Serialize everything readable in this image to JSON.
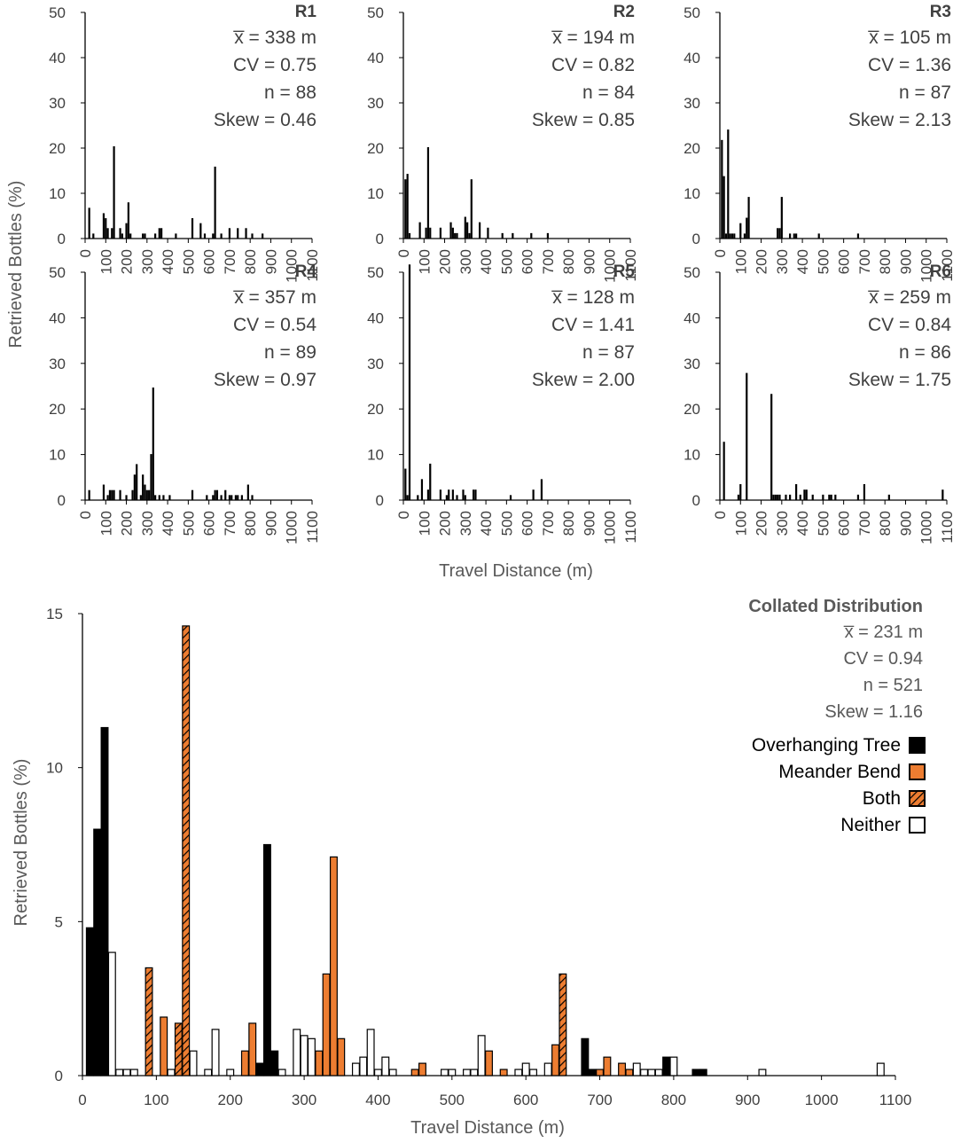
{
  "chart_data": [
    {
      "panel": "R1",
      "type": "bar",
      "stats": {
        "mean": "x̅ = 338 m",
        "cv": "CV = 0.75",
        "n": "n = 88",
        "skew": "Skew = 0.46"
      },
      "ylim": [
        0,
        50
      ],
      "yticks": [
        "0",
        "10",
        "20",
        "30",
        "40",
        "50"
      ],
      "xlim": [
        0,
        1100
      ],
      "x": [
        20,
        40,
        90,
        100,
        110,
        130,
        140,
        170,
        180,
        200,
        210,
        220,
        280,
        290,
        340,
        360,
        370,
        440,
        520,
        560,
        580,
        620,
        630,
        660,
        700,
        740,
        780,
        810,
        860
      ],
      "values": [
        6.8,
        1.1,
        5.6,
        4.5,
        2.3,
        2.3,
        20.4,
        2.3,
        1.1,
        3.4,
        8.0,
        1.1,
        1.1,
        1.1,
        1.1,
        2.3,
        2.3,
        1.1,
        4.5,
        3.4,
        1.1,
        1.1,
        15.9,
        1.1,
        2.3,
        2.3,
        2.3,
        1.1,
        1.1
      ]
    },
    {
      "panel": "R2",
      "type": "bar",
      "stats": {
        "mean": "x̅ = 194 m",
        "cv": "CV = 0.82",
        "n": "n = 84",
        "skew": "Skew = 0.85"
      },
      "ylim": [
        0,
        50
      ],
      "yticks": [
        "0",
        "10",
        "20",
        "30",
        "40",
        "50"
      ],
      "xlim": [
        0,
        1100
      ],
      "x": [
        10,
        20,
        30,
        80,
        110,
        120,
        130,
        180,
        230,
        240,
        250,
        260,
        300,
        310,
        320,
        330,
        370,
        410,
        480,
        530,
        620,
        700
      ],
      "values": [
        13.1,
        14.3,
        1.2,
        3.6,
        2.4,
        20.2,
        2.4,
        2.4,
        3.6,
        2.4,
        1.2,
        1.2,
        4.8,
        3.6,
        1.2,
        13.1,
        3.6,
        2.4,
        1.2,
        1.2,
        1.2,
        1.2
      ]
    },
    {
      "panel": "R3",
      "type": "bar",
      "stats": {
        "mean": "x̅ = 105 m",
        "cv": "CV = 1.36",
        "n": "n = 87",
        "skew": "Skew = 2.13"
      },
      "ylim": [
        0,
        50
      ],
      "yticks": [
        "0",
        "10",
        "20",
        "30",
        "40",
        "50"
      ],
      "xlim": [
        0,
        1100
      ],
      "x": [
        10,
        20,
        30,
        40,
        50,
        60,
        70,
        100,
        120,
        130,
        140,
        280,
        290,
        300,
        340,
        360,
        370,
        480,
        670
      ],
      "values": [
        21.8,
        13.8,
        1.1,
        24.1,
        1.1,
        1.1,
        1.1,
        3.4,
        1.1,
        4.6,
        9.2,
        2.3,
        2.3,
        9.2,
        1.1,
        1.1,
        1.1,
        1.1,
        1.1
      ]
    },
    {
      "panel": "R4",
      "type": "bar",
      "stats": {
        "mean": "x̅ = 357 m",
        "cv": "CV = 0.54",
        "n": "n = 89",
        "skew": "Skew = 0.97"
      },
      "ylim": [
        0,
        50
      ],
      "yticks": [
        "0",
        "10",
        "20",
        "30",
        "40",
        "50"
      ],
      "xlim": [
        0,
        1100
      ],
      "x": [
        20,
        90,
        110,
        120,
        130,
        140,
        170,
        200,
        230,
        240,
        250,
        270,
        280,
        290,
        300,
        310,
        320,
        330,
        340,
        360,
        380,
        410,
        520,
        590,
        620,
        630,
        640,
        660,
        680,
        700,
        710,
        730,
        740,
        760,
        790,
        810
      ],
      "values": [
        2.2,
        3.4,
        1.1,
        2.2,
        2.2,
        2.2,
        2.2,
        1.1,
        2.2,
        5.6,
        7.9,
        1.1,
        5.6,
        3.4,
        2.2,
        2.2,
        10.1,
        24.7,
        1.1,
        1.1,
        1.1,
        1.1,
        2.2,
        1.1,
        1.1,
        2.2,
        2.2,
        1.1,
        2.2,
        1.1,
        1.1,
        1.1,
        1.1,
        1.1,
        3.4,
        1.1
      ]
    },
    {
      "panel": "R5",
      "type": "bar",
      "stats": {
        "mean": "x̅ = 128 m",
        "cv": "CV = 1.41",
        "n": "n = 87",
        "skew": "Skew = 2.00"
      },
      "ylim": [
        0,
        50
      ],
      "yticks": [
        "0",
        "10",
        "20",
        "30",
        "40",
        "50"
      ],
      "xlim": [
        0,
        1100
      ],
      "x": [
        10,
        20,
        30,
        70,
        90,
        120,
        130,
        180,
        210,
        220,
        240,
        260,
        290,
        300,
        340,
        350,
        520,
        630,
        670
      ],
      "values": [
        6.9,
        1.1,
        51.7,
        1.1,
        4.6,
        2.3,
        8.0,
        2.3,
        1.1,
        2.3,
        2.3,
        1.1,
        2.3,
        1.1,
        2.3,
        2.3,
        1.1,
        2.3,
        4.6
      ]
    },
    {
      "panel": "R6",
      "type": "bar",
      "stats": {
        "mean": "x̅ = 259 m",
        "cv": "CV = 0.84",
        "n": "n = 86",
        "skew": "Skew = 1.75"
      },
      "ylim": [
        0,
        50
      ],
      "yticks": [
        "0",
        "10",
        "20",
        "30",
        "40",
        "50"
      ],
      "xlim": [
        0,
        1100
      ],
      "x": [
        20,
        90,
        100,
        130,
        250,
        260,
        270,
        280,
        290,
        320,
        340,
        370,
        390,
        410,
        420,
        450,
        500,
        530,
        540,
        560,
        670,
        700,
        820,
        1080
      ],
      "values": [
        12.8,
        1.2,
        3.5,
        27.9,
        23.3,
        1.2,
        1.2,
        1.2,
        1.2,
        1.2,
        1.2,
        3.5,
        1.2,
        2.3,
        2.3,
        1.2,
        1.2,
        1.2,
        1.2,
        1.2,
        1.2,
        3.5,
        1.2,
        2.3
      ]
    },
    {
      "panel": "Collated",
      "type": "bar",
      "title": "Collated Distribution",
      "stats": {
        "mean": "x̅ = 231 m",
        "cv": "CV = 0.94",
        "n": "n = 521",
        "skew": "Skew = 1.16"
      },
      "ylim": [
        0,
        15
      ],
      "yticks": [
        "0",
        "5",
        "10",
        "15"
      ],
      "xlim": [
        0,
        1100
      ],
      "legend": {
        "position": "top-right",
        "items": [
          {
            "label": "Overhanging Tree",
            "key": "tree"
          },
          {
            "label": "Meander Bend",
            "key": "bend"
          },
          {
            "label": "Both",
            "key": "both"
          },
          {
            "label": "Neither",
            "key": "neither"
          }
        ]
      },
      "colors": {
        "tree": "#000000",
        "bend": "#ed7d31",
        "neither": "#ffffff",
        "outline": "#000000"
      },
      "x": [
        10,
        20,
        30,
        40,
        50,
        60,
        70,
        90,
        110,
        120,
        130,
        140,
        150,
        170,
        180,
        200,
        220,
        230,
        240,
        250,
        260,
        270,
        290,
        300,
        310,
        320,
        330,
        340,
        350,
        370,
        380,
        390,
        400,
        410,
        420,
        450,
        460,
        490,
        500,
        520,
        530,
        540,
        550,
        570,
        590,
        600,
        610,
        630,
        640,
        650,
        680,
        690,
        700,
        710,
        730,
        740,
        750,
        760,
        770,
        780,
        790,
        800,
        830,
        840,
        920,
        1080
      ],
      "values": [
        4.8,
        8.0,
        11.3,
        4.0,
        0.2,
        0.2,
        0.2,
        3.5,
        1.9,
        0.2,
        1.7,
        14.6,
        0.8,
        0.2,
        1.5,
        0.2,
        0.8,
        1.7,
        0.4,
        7.5,
        0.8,
        0.2,
        1.5,
        1.3,
        1.2,
        0.8,
        3.3,
        7.1,
        1.2,
        0.4,
        0.6,
        1.5,
        0.2,
        0.6,
        0.2,
        0.2,
        0.4,
        0.2,
        0.2,
        0.2,
        0.2,
        1.3,
        0.8,
        0.2,
        0.2,
        0.4,
        0.2,
        0.4,
        1.0,
        3.3,
        1.2,
        0.2,
        0.2,
        0.6,
        0.4,
        0.2,
        0.4,
        0.2,
        0.2,
        0.2,
        0.6,
        0.6,
        0.2,
        0.2,
        0.2,
        0.4
      ],
      "category": [
        "tree",
        "tree",
        "tree",
        "neither",
        "neither",
        "neither",
        "neither",
        "both",
        "bend",
        "neither",
        "both",
        "both",
        "neither",
        "neither",
        "neither",
        "neither",
        "bend",
        "bend",
        "tree",
        "tree",
        "tree",
        "neither",
        "neither",
        "neither",
        "neither",
        "bend",
        "bend",
        "bend",
        "bend",
        "neither",
        "neither",
        "neither",
        "neither",
        "neither",
        "neither",
        "bend",
        "bend",
        "neither",
        "neither",
        "neither",
        "neither",
        "neither",
        "bend",
        "bend",
        "neither",
        "neither",
        "neither",
        "neither",
        "bend",
        "both",
        "tree",
        "tree",
        "bend",
        "bend",
        "bend",
        "bend",
        "neither",
        "neither",
        "neither",
        "neither",
        "tree",
        "neither",
        "tree",
        "tree",
        "neither",
        "neither"
      ]
    }
  ],
  "labels": {
    "y_title": "Retrieved Bottles (%)",
    "x_title": "Travel Distance (m)",
    "xticks": [
      "0",
      "100",
      "200",
      "300",
      "400",
      "500",
      "600",
      "700",
      "800",
      "900",
      "1000",
      "1100"
    ]
  }
}
